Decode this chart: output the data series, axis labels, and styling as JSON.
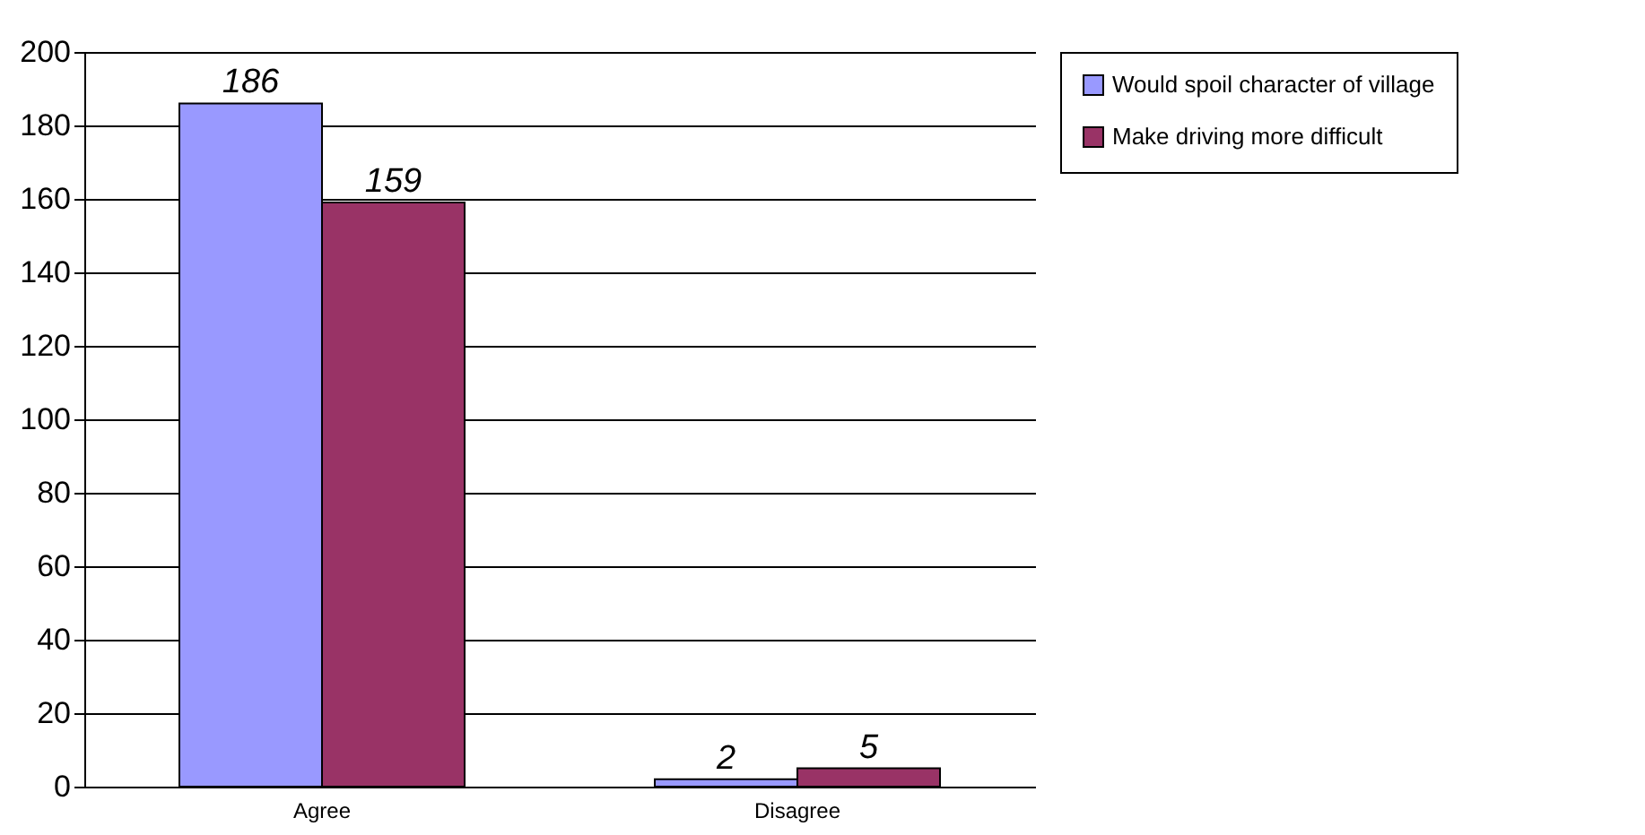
{
  "chart_data": {
    "type": "bar",
    "categories": [
      "Agree",
      "Disagree"
    ],
    "series": [
      {
        "name": "Would spoil character of village",
        "color": "#9999ff",
        "values": [
          186,
          2
        ]
      },
      {
        "name": "Make driving more difficult",
        "color": "#993366",
        "values": [
          159,
          5
        ]
      }
    ],
    "ylim": [
      0,
      200
    ],
    "yticks": [
      0,
      20,
      40,
      60,
      80,
      100,
      120,
      140,
      160,
      180,
      200
    ],
    "grid": "y",
    "legend": "right",
    "data_labels": true
  }
}
